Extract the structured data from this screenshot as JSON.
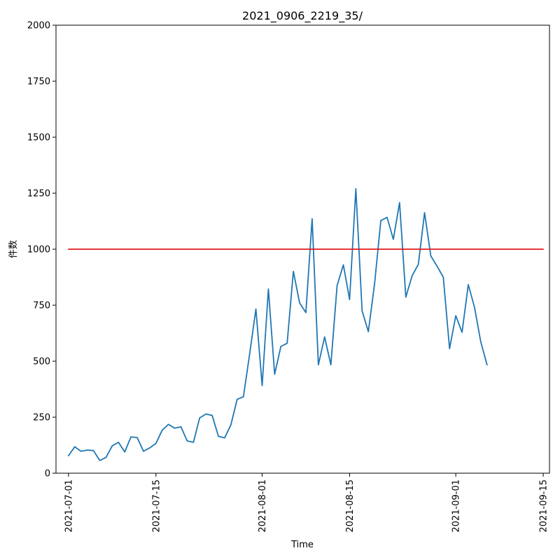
{
  "chart_data": {
    "type": "line",
    "title": "2021_0906_2219_35/",
    "xlabel": "Time",
    "ylabel": "件数",
    "xlim": [
      "2021-06-29",
      "2021-09-16"
    ],
    "ylim": [
      0,
      2000
    ],
    "grid": false,
    "x_ticks": [
      "2021-07-01",
      "2021-07-15",
      "2021-08-01",
      "2021-08-15",
      "2021-09-01",
      "2021-09-15"
    ],
    "y_ticks": [
      0,
      250,
      500,
      750,
      1000,
      1250,
      1500,
      1750,
      2000
    ],
    "series": [
      {
        "color": "#1f77b4",
        "x": [
          "2021-07-01",
          "2021-07-02",
          "2021-07-03",
          "2021-07-04",
          "2021-07-05",
          "2021-07-06",
          "2021-07-07",
          "2021-07-08",
          "2021-07-09",
          "2021-07-10",
          "2021-07-11",
          "2021-07-12",
          "2021-07-13",
          "2021-07-14",
          "2021-07-15",
          "2021-07-16",
          "2021-07-17",
          "2021-07-18",
          "2021-07-19",
          "2021-07-20",
          "2021-07-21",
          "2021-07-22",
          "2021-07-23",
          "2021-07-24",
          "2021-07-25",
          "2021-07-26",
          "2021-07-27",
          "2021-07-28",
          "2021-07-29",
          "2021-07-30",
          "2021-07-31",
          "2021-08-01",
          "2021-08-02",
          "2021-08-03",
          "2021-08-04",
          "2021-08-05",
          "2021-08-06",
          "2021-08-07",
          "2021-08-08",
          "2021-08-09",
          "2021-08-10",
          "2021-08-11",
          "2021-08-12",
          "2021-08-13",
          "2021-08-14",
          "2021-08-15",
          "2021-08-16",
          "2021-08-17",
          "2021-08-18",
          "2021-08-19",
          "2021-08-20",
          "2021-08-21",
          "2021-08-22",
          "2021-08-23",
          "2021-08-24",
          "2021-08-25",
          "2021-08-26",
          "2021-08-27",
          "2021-08-28",
          "2021-08-29",
          "2021-08-30",
          "2021-08-31",
          "2021-09-01",
          "2021-09-02",
          "2021-09-03",
          "2021-09-04",
          "2021-09-05",
          "2021-09-06"
        ],
        "values": [
          78,
          118,
          98,
          103,
          101,
          57,
          70,
          122,
          138,
          95,
          162,
          159,
          98,
          113,
          133,
          192,
          218,
          201,
          207,
          144,
          138,
          247,
          264,
          258,
          165,
          158,
          216,
          330,
          341,
          532,
          733,
          391,
          822,
          442,
          566,
          580,
          901,
          760,
          717,
          1136,
          484,
          608,
          484,
          838,
          930,
          775,
          1270,
          725,
          632,
          846,
          1128,
          1142,
          1044,
          1208,
          786,
          881,
          932,
          1163,
          970,
          924,
          875,
          556,
          703,
          629,
          842,
          740,
          586,
          484
        ]
      },
      {
        "color": "#e31a1c",
        "x": [
          "2021-07-01",
          "2021-09-15"
        ],
        "values": [
          1000,
          1000
        ]
      }
    ]
  }
}
